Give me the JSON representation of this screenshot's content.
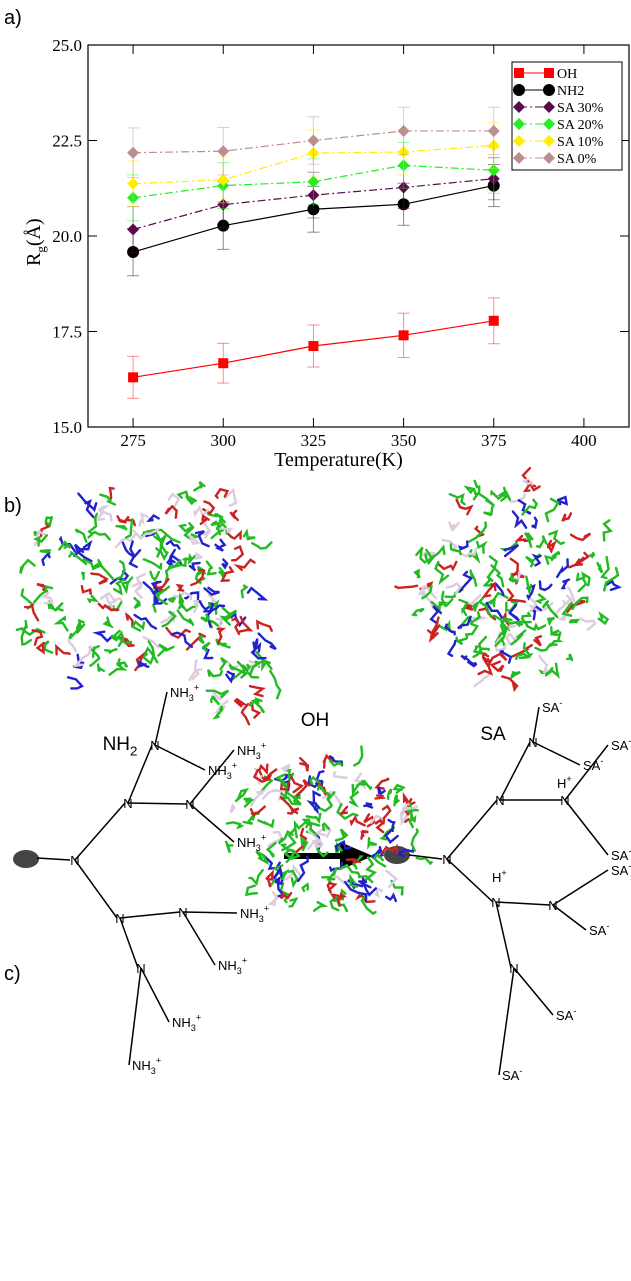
{
  "chart_data": {
    "type": "line",
    "panel_label": "a)",
    "xlabel": "Temperature(K)",
    "ylabel_parts": [
      "R",
      "g",
      "(Å)"
    ],
    "x": [
      275,
      300,
      325,
      350,
      375
    ],
    "xlim": [
      262.5,
      412.5
    ],
    "xticks": [
      275,
      300,
      325,
      350,
      375,
      400
    ],
    "ylim": [
      15,
      25
    ],
    "yticks": [
      {
        "value": 15,
        "label": "15.0"
      },
      17.5,
      {
        "value": 20,
        "label": "20.0"
      },
      22.5,
      {
        "value": 25,
        "label": "25.0"
      }
    ],
    "legend": "upper right",
    "series": [
      {
        "name": "OH",
        "color": "#ff0000",
        "marker": "square",
        "linestyle": "solid",
        "values": [
          16.3,
          16.67,
          17.12,
          17.4,
          17.78
        ],
        "errors": [
          0.55,
          0.52,
          0.55,
          0.58,
          0.6
        ]
      },
      {
        "name": "NH2",
        "color": "#000000",
        "marker": "circle",
        "linestyle": "solid",
        "values": [
          19.58,
          20.27,
          20.7,
          20.83,
          21.32
        ],
        "errors": [
          0.62,
          0.62,
          0.6,
          0.55,
          0.55
        ]
      },
      {
        "name": "SA 30%",
        "color": "#5a0b4d",
        "marker": "diamond",
        "linestyle": "dashdot",
        "values": [
          20.17,
          20.82,
          21.07,
          21.27,
          21.5
        ],
        "errors": [
          0.6,
          0.6,
          0.6,
          0.55,
          0.55
        ]
      },
      {
        "name": "SA 20%",
        "color": "#22ee22",
        "marker": "diamond",
        "linestyle": "dashdot",
        "values": [
          21.0,
          21.32,
          21.42,
          21.85,
          21.72
        ],
        "errors": [
          0.6,
          0.6,
          0.6,
          0.6,
          0.6
        ]
      },
      {
        "name": "SA 10%",
        "color": "#ffee00",
        "marker": "diamond",
        "linestyle": "dashdot",
        "values": [
          21.37,
          21.47,
          22.17,
          22.2,
          22.37
        ],
        "errors": [
          0.6,
          0.6,
          0.6,
          0.6,
          0.6
        ]
      },
      {
        "name": "SA 0%",
        "color": "#bc8f8f",
        "marker": "diamond",
        "linestyle": "dashdot",
        "values": [
          22.18,
          22.22,
          22.5,
          22.75,
          22.75
        ],
        "errors": [
          0.65,
          0.62,
          0.62,
          0.62,
          0.62
        ]
      }
    ]
  },
  "panel_b": {
    "panel_label": "b)",
    "labels": [
      {
        "text": "NH",
        "sub": "2"
      },
      {
        "text": "OH"
      },
      {
        "text": "SA"
      }
    ]
  },
  "panel_c": {
    "panel_label": "c)",
    "left_labels": [
      {
        "text": "N"
      },
      {
        "text": "N"
      },
      {
        "text": "N"
      },
      {
        "text": "N"
      },
      {
        "text": "N"
      },
      {
        "text": "N"
      },
      {
        "text": "N"
      },
      {
        "text": "NH",
        "sub": "3",
        "sup": "+"
      },
      {
        "text": "NH",
        "sub": "3",
        "sup": "+"
      },
      {
        "text": "NH",
        "sub": "3",
        "sup": "+"
      },
      {
        "text": "NH",
        "sub": "3",
        "sup": "+"
      },
      {
        "text": "NH",
        "sub": "3",
        "sup": "+"
      },
      {
        "text": "NH",
        "sub": "3",
        "sup": "+"
      },
      {
        "text": "NH",
        "sub": "3",
        "sup": "+"
      },
      {
        "text": "NH",
        "sub": "3",
        "sup": "+"
      }
    ],
    "right_labels": [
      {
        "text": "N"
      },
      {
        "text": "N"
      },
      {
        "text": "N"
      },
      {
        "text": "N"
      },
      {
        "text": "N"
      },
      {
        "text": "N"
      },
      {
        "text": "N"
      },
      {
        "text": "H",
        "sup": "+"
      },
      {
        "text": "H",
        "sup": "+"
      },
      {
        "text": "SA",
        "sup": "-"
      },
      {
        "text": "SA",
        "sup": "-"
      },
      {
        "text": "SA",
        "sup": "-"
      },
      {
        "text": "SA",
        "sup": "-"
      },
      {
        "text": "SA",
        "sup": "-"
      },
      {
        "text": "SA",
        "sup": "-"
      },
      {
        "text": "SA",
        "sup": "-"
      },
      {
        "text": "SA",
        "sup": "-"
      }
    ]
  }
}
